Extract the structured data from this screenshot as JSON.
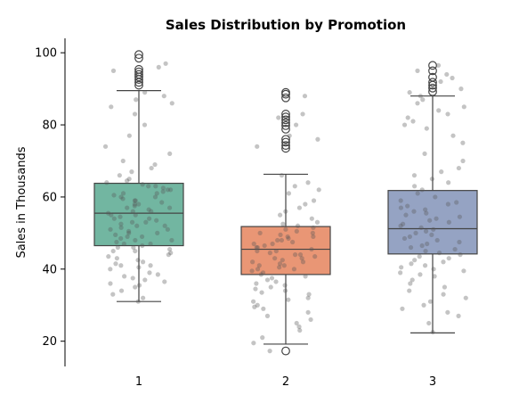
{
  "chart_data": {
    "type": "box",
    "title": "Sales Distribution by Promotion",
    "xlabel": "",
    "ylabel": "Sales in Thousands",
    "ylim": [
      13,
      104
    ],
    "yticks": [
      20,
      40,
      60,
      80,
      100
    ],
    "categories": [
      "1",
      "2",
      "3"
    ],
    "grid": false,
    "boxes": [
      {
        "category": "1",
        "q1": 46.5,
        "median": 55.5,
        "q3": 63.8,
        "whisker_low": 31.0,
        "whisker_high": 89.5,
        "outliers": [
          91.0,
          91.8,
          92.6,
          93.3,
          94.0,
          94.7,
          95.4,
          98.5,
          99.5
        ],
        "color": "#72b6a1"
      },
      {
        "category": "2",
        "q1": 38.5,
        "median": 45.5,
        "q3": 51.8,
        "whisker_low": 19.2,
        "whisker_high": 66.3,
        "outliers": [
          17.3,
          73.5,
          74.3,
          75.2,
          76.0,
          78.8,
          79.8,
          80.6,
          81.4,
          82.2,
          83.0,
          87.5,
          88.5,
          89.0
        ],
        "color": "#e99675"
      },
      {
        "category": "3",
        "q1": 44.2,
        "median": 51.2,
        "q3": 61.8,
        "whisker_low": 22.3,
        "whisker_high": 88.0,
        "outliers": [
          89.2,
          90.2,
          91.0,
          91.8,
          93.2,
          95.0,
          96.5
        ],
        "color": "#95a3c3"
      }
    ],
    "strip_points": {
      "1": [
        31,
        32,
        33,
        34,
        35,
        35.5,
        36,
        36.5,
        37,
        37.5,
        38,
        38.5,
        39,
        40,
        40.5,
        41,
        41,
        41.5,
        42,
        42.5,
        43,
        43.5,
        44,
        44.5,
        45,
        45,
        45.5,
        46,
        46,
        46.5,
        47,
        47,
        47.5,
        48,
        48,
        48.5,
        49,
        49,
        49.5,
        50,
        50,
        50.5,
        51,
        51,
        51.5,
        52,
        52,
        52.5,
        53,
        53,
        53.5,
        54,
        54,
        54.5,
        55,
        55,
        55.5,
        56,
        56,
        56.5,
        57,
        57,
        57.5,
        58,
        58,
        58.5,
        59,
        59,
        59.5,
        60,
        60,
        60.5,
        61,
        61,
        61.5,
        62,
        62,
        62.5,
        63,
        63,
        63.5,
        64,
        64.5,
        65,
        66,
        67,
        68,
        69,
        70,
        72,
        74,
        77,
        80,
        83,
        85,
        86,
        87,
        88,
        89,
        94,
        95,
        96,
        97
      ],
      "2": [
        17.3,
        19.5,
        21,
        23,
        24,
        25,
        26,
        27,
        28,
        29,
        29.5,
        30,
        31,
        31.5,
        32,
        33,
        33.5,
        34,
        34.5,
        35,
        35.5,
        36,
        36.5,
        37,
        37.5,
        38,
        38.5,
        39,
        39.5,
        40,
        40,
        40.5,
        41,
        41,
        41.5,
        42,
        42,
        42.5,
        43,
        43,
        43.5,
        44,
        44,
        44.5,
        45,
        45,
        45.5,
        46,
        46,
        46.5,
        47,
        47,
        47.5,
        48,
        48,
        48.5,
        49,
        49,
        49.5,
        50,
        50,
        50.5,
        51,
        51.5,
        52,
        52.5,
        53,
        54,
        55,
        56,
        57,
        58,
        59,
        61,
        62,
        63,
        64,
        66,
        74,
        76,
        77,
        80,
        82,
        83,
        88
      ],
      "3": [
        22.5,
        25,
        27,
        28,
        29,
        30,
        31,
        32,
        33,
        34,
        35,
        36,
        37,
        38,
        38.5,
        39,
        39.5,
        40,
        40.5,
        41,
        41.5,
        42,
        42.5,
        43,
        43.5,
        44,
        44.5,
        45,
        45.5,
        46,
        46.5,
        47,
        47.5,
        48,
        48.5,
        49,
        49.5,
        50,
        50.5,
        51,
        51.5,
        52,
        52.5,
        53,
        53.5,
        54,
        54.5,
        55,
        55.5,
        56,
        56.5,
        57,
        57.5,
        58,
        58.5,
        59,
        60,
        61,
        62,
        63,
        64,
        65,
        66,
        67,
        68,
        70,
        72,
        75,
        77,
        79,
        80,
        81,
        82,
        83,
        84,
        85,
        86,
        87,
        88,
        89,
        90,
        92,
        93,
        94,
        95,
        96.5
      ]
    }
  }
}
